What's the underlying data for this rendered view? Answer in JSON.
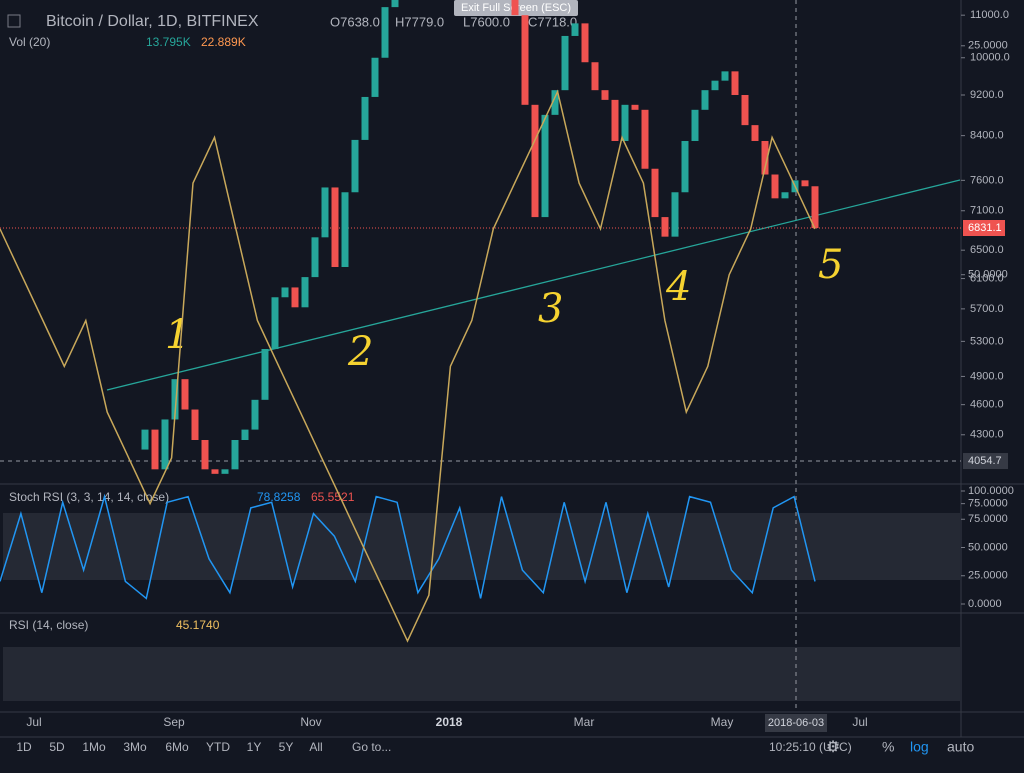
{
  "header": {
    "symbol": "Bitcoin / Dollar, 1D, BITFINEX",
    "open": "O7638.0",
    "high": "H7779.0",
    "low": "L7600.0",
    "close": "C7718.0",
    "exit": "Exit Full Screen (ESC)"
  },
  "volume": {
    "label": "Vol (20)",
    "v1": "13.795K",
    "v2": "22.889K"
  },
  "price": {
    "log": true,
    "ylim": [
      3860,
      11380
    ],
    "yticks": [
      {
        "value": 11000,
        "label": "11000.0"
      },
      {
        "value": 10000,
        "label": "10000.0"
      },
      {
        "value": 9200,
        "label": "9200.0"
      },
      {
        "value": 8400,
        "label": "8400.0"
      },
      {
        "value": 7600,
        "label": "7600.0"
      },
      {
        "value": 7100,
        "label": "7100.0"
      },
      {
        "value": 6500,
        "label": "6500.0"
      },
      {
        "value": 6100,
        "label": "6100.0"
      },
      {
        "value": 5700,
        "label": "5700.0"
      },
      {
        "value": 5300,
        "label": "5300.0"
      },
      {
        "value": 4900,
        "label": "4900.0"
      },
      {
        "value": 4600,
        "label": "4600.0"
      },
      {
        "value": 4300,
        "label": "4300.0"
      }
    ],
    "last": {
      "value": 6831.1,
      "label": "6831.1"
    },
    "cursor": {
      "value": 4054.7,
      "label": "4054.7"
    },
    "closes": [
      4160,
      4350,
      3980,
      4450,
      4870,
      4550,
      4250,
      3980,
      3940,
      3980,
      4250,
      4350,
      4650,
      5210,
      5850,
      5980,
      5720,
      6120,
      6690,
      7480,
      6260,
      7400,
      8320,
      9160,
      10000,
      11200,
      12500,
      15000,
      17000,
      19000,
      16000,
      14000,
      15500,
      16500,
      14000,
      13000,
      12500,
      11500,
      11000,
      9000,
      7000,
      8800,
      9300,
      10500,
      10800,
      9900,
      9300,
      9100,
      8300,
      9000,
      8900,
      7800,
      7000,
      6700,
      7400,
      8300,
      8900,
      9300,
      9500,
      9700,
      9200,
      8600,
      8300,
      7700,
      7300,
      7400,
      7600,
      7500,
      6830
    ]
  },
  "annotations": [
    "1",
    "2",
    "3",
    "4",
    "5"
  ],
  "stoch": {
    "label": "Stoch RSI (3, 3, 14, 14, close)",
    "k": "78.8258",
    "d": "65.5521",
    "ylim": [
      0,
      100
    ],
    "yticks": [
      {
        "value": 100,
        "label": "100.0000"
      },
      {
        "value": 75,
        "label": "75.0000"
      },
      {
        "value": 50,
        "label": "50.0000"
      },
      {
        "value": 25,
        "label": "25.0000"
      },
      {
        "value": 0,
        "label": "0.0000"
      }
    ],
    "values": [
      20,
      80,
      10,
      90,
      30,
      95,
      20,
      5,
      90,
      95,
      40,
      10,
      85,
      90,
      15,
      80,
      60,
      20,
      95,
      90,
      10,
      40,
      85,
      5,
      95,
      30,
      10,
      90,
      20,
      90,
      10,
      80,
      15,
      95,
      90,
      30,
      10,
      85,
      95,
      20
    ]
  },
  "rsi": {
    "label": "RSI (14, close)",
    "value": "45.1740",
    "ylim": [
      20,
      90
    ],
    "yticks": [
      {
        "value": 75,
        "label": "75.0000"
      },
      {
        "value": 50,
        "label": "50.0000"
      },
      {
        "value": 25,
        "label": "25.0000"
      }
    ],
    "values": [
      45,
      50,
      55,
      60,
      55,
      65,
      70,
      75,
      70,
      40,
      35,
      45,
      55,
      60,
      65,
      70,
      75,
      80,
      85,
      90,
      85,
      60,
      55,
      45,
      40,
      35,
      30,
      40,
      45,
      35,
      40,
      55,
      65,
      60,
      50,
      45,
      35,
      40,
      45
    ]
  },
  "time_axis": [
    "Jul",
    "Sep",
    "Nov",
    "2018",
    "Mar",
    "May",
    "Jul"
  ],
  "crosshair_date": "2018-06-03",
  "toolbar": {
    "ranges": [
      "1D",
      "5D",
      "1Mo",
      "3Mo",
      "6Mo",
      "YTD",
      "1Y",
      "5Y",
      "All"
    ],
    "goto": "Go to...",
    "time": "10:25:10 (UTC)",
    "percent": "%",
    "log": "log",
    "auto": "auto"
  }
}
